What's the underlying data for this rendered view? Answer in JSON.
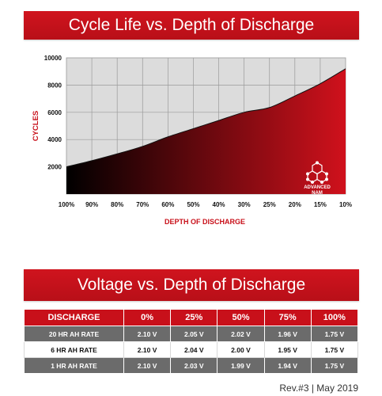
{
  "chart_data": {
    "type": "area",
    "title": "Cycle Life vs. Depth of Discharge",
    "xlabel": "DEPTH OF DISCHARGE",
    "ylabel": "CYCLES",
    "x": [
      "100%",
      "90%",
      "80%",
      "70%",
      "60%",
      "50%",
      "40%",
      "30%",
      "25%",
      "20%",
      "15%",
      "10%"
    ],
    "y_ticks": [
      2000,
      4000,
      6000,
      8000,
      10000
    ],
    "ylim": [
      0,
      10000
    ],
    "values": [
      2000,
      2450,
      2950,
      3500,
      4200,
      4800,
      5400,
      6000,
      6350,
      7200,
      8100,
      9200
    ],
    "grid": true,
    "fill_gradient": [
      "#000000",
      "#d0111c"
    ]
  },
  "logo": {
    "line1": "ADVANCED",
    "line2": "NAM"
  },
  "voltage_table": {
    "title": "Voltage vs. Depth of Discharge",
    "headers": [
      "DISCHARGE",
      "0%",
      "25%",
      "50%",
      "75%",
      "100%"
    ],
    "rows": [
      {
        "label": "20 HR AH RATE",
        "values": [
          "2.10 V",
          "2.05 V",
          "2.02 V",
          "1.96 V",
          "1.75 V"
        ]
      },
      {
        "label": "6 HR AH RATE",
        "values": [
          "2.10 V",
          "2.04 V",
          "2.00 V",
          "1.95 V",
          "1.75 V"
        ]
      },
      {
        "label": "1 HR AH RATE",
        "values": [
          "2.10 V",
          "2.03 V",
          "1.99 V",
          "1.94 V",
          "1.75 V"
        ]
      }
    ]
  },
  "footer": {
    "revision": "Rev.#3 | May 2019"
  },
  "colors": {
    "brand_red": "#c8101a",
    "row_gray": "#6b6b6b",
    "plot_bg": "#dcdcdc"
  }
}
